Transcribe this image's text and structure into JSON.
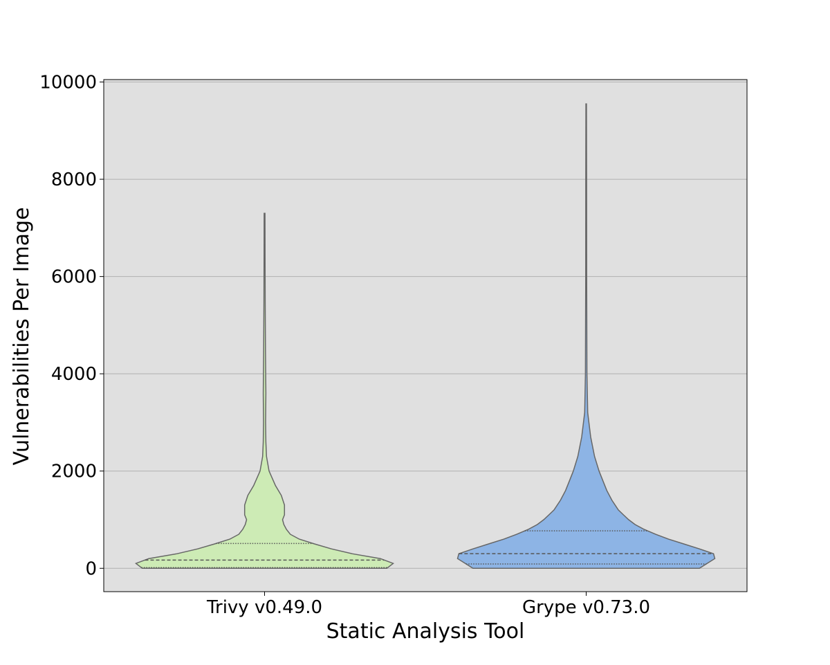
{
  "chart_data": {
    "type": "violin",
    "title": "",
    "xlabel": "Static Analysis Tool",
    "ylabel": "Vulnerabilities Per Image",
    "ylim": [
      -480,
      10050
    ],
    "yticks": [
      0,
      2000,
      4000,
      6000,
      8000,
      10000
    ],
    "grid": "horizontal",
    "background": "#e0e0e0",
    "inner": "quartile",
    "categories": [
      "Trivy v0.49.0",
      "Grype v0.73.0"
    ],
    "series": [
      {
        "category": "Trivy v0.49.0",
        "color": "#cdebb5",
        "min": 0,
        "max": 7300,
        "quartiles": [
          15,
          170,
          510
        ],
        "density": [
          [
            0,
            0.95
          ],
          [
            100,
            1.0
          ],
          [
            200,
            0.9
          ],
          [
            300,
            0.68
          ],
          [
            400,
            0.52
          ],
          [
            500,
            0.39
          ],
          [
            600,
            0.27
          ],
          [
            700,
            0.2
          ],
          [
            800,
            0.17
          ],
          [
            900,
            0.15
          ],
          [
            1000,
            0.14
          ],
          [
            1100,
            0.155
          ],
          [
            1300,
            0.155
          ],
          [
            1500,
            0.13
          ],
          [
            1700,
            0.085
          ],
          [
            2000,
            0.035
          ],
          [
            2300,
            0.015
          ],
          [
            2600,
            0.01
          ],
          [
            3000,
            0.008
          ],
          [
            3600,
            0.01
          ],
          [
            4500,
            0.007
          ],
          [
            5500,
            0.005
          ],
          [
            6500,
            0.004
          ],
          [
            7300,
            0.003
          ]
        ]
      },
      {
        "category": "Grype v0.73.0",
        "color": "#8db4e5",
        "min": 0,
        "max": 9550,
        "quartiles": [
          90,
          300,
          770
        ],
        "density": [
          [
            0,
            0.88
          ],
          [
            100,
            0.94
          ],
          [
            200,
            1.0
          ],
          [
            300,
            0.99
          ],
          [
            400,
            0.88
          ],
          [
            500,
            0.76
          ],
          [
            600,
            0.64
          ],
          [
            700,
            0.54
          ],
          [
            800,
            0.45
          ],
          [
            900,
            0.38
          ],
          [
            1000,
            0.33
          ],
          [
            1100,
            0.29
          ],
          [
            1200,
            0.25
          ],
          [
            1400,
            0.2
          ],
          [
            1600,
            0.16
          ],
          [
            1800,
            0.13
          ],
          [
            2000,
            0.1
          ],
          [
            2300,
            0.065
          ],
          [
            2700,
            0.035
          ],
          [
            3200,
            0.012
          ],
          [
            4000,
            0.006
          ],
          [
            6000,
            0.004
          ],
          [
            8000,
            0.003
          ],
          [
            9550,
            0.002
          ]
        ]
      }
    ]
  }
}
